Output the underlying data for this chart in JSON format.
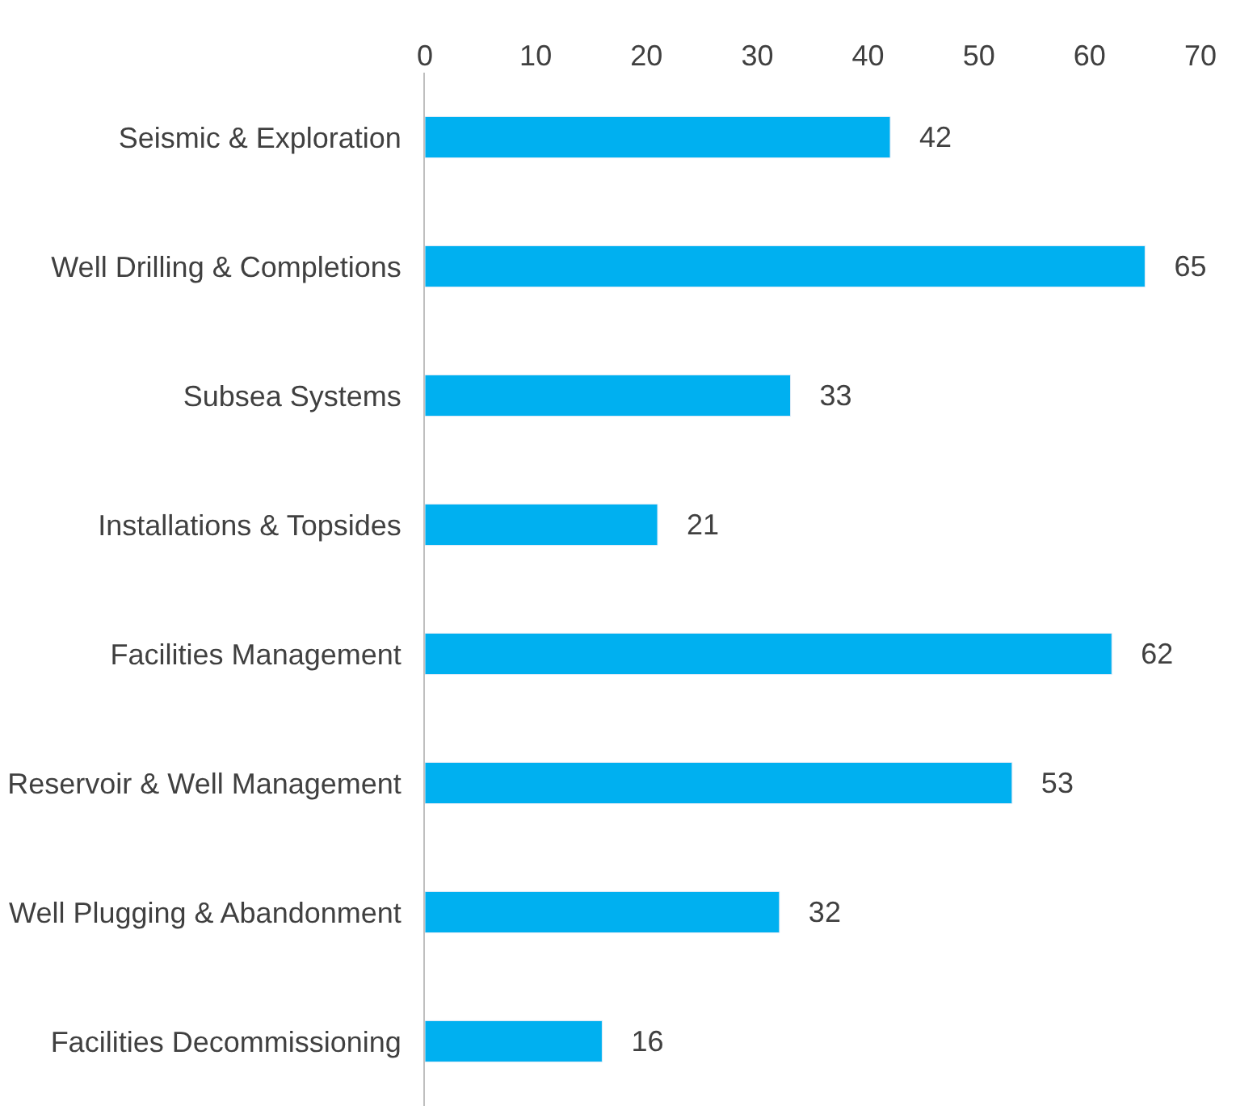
{
  "chart_data": {
    "type": "bar",
    "orientation": "horizontal",
    "categories": [
      "Seismic & Exploration",
      "Well Drilling & Completions",
      "Subsea Systems",
      "Installations & Topsides",
      "Facilities Management",
      "Reservoir & Well Management",
      "Well Plugging & Abandonment",
      "Facilities Decommissioning"
    ],
    "values": [
      42,
      65,
      33,
      21,
      62,
      53,
      32,
      16
    ],
    "color": "#00b0f0",
    "xlim": [
      0,
      70
    ],
    "xticks": [
      0,
      10,
      20,
      30,
      40,
      50,
      60,
      70
    ],
    "data_labels": true
  }
}
